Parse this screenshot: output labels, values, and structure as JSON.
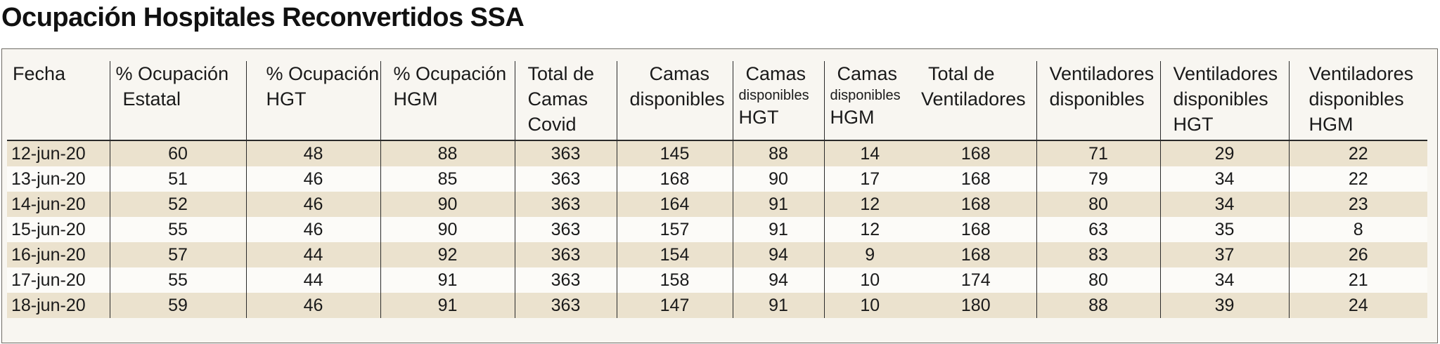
{
  "title": "Ocupación Hospitales Reconvertidos SSA",
  "table": {
    "headers": [
      [
        "Fecha"
      ],
      [
        "% Ocupación",
        "Estatal"
      ],
      [
        "% Ocupación",
        "HGT"
      ],
      [
        "% Ocupación",
        "HGM"
      ],
      [
        "Total de",
        "Camas",
        "Covid"
      ],
      [
        "Camas",
        "disponibles"
      ],
      [
        "Camas",
        "disponibles",
        "HGT"
      ],
      [
        "Camas",
        "disponibles",
        "HGM"
      ],
      [
        "Total de",
        "Ventiladores"
      ],
      [
        "Ventiladores",
        "disponibles"
      ],
      [
        "Ventiladores",
        "disponibles",
        "HGT"
      ],
      [
        "Ventiladores",
        "disponibles",
        "HGM"
      ]
    ],
    "rows": [
      [
        "12-jun-20",
        "60",
        "48",
        "88",
        "363",
        "145",
        "88",
        "14",
        "168",
        "71",
        "29",
        "22"
      ],
      [
        "13-jun-20",
        "51",
        "46",
        "85",
        "363",
        "168",
        "90",
        "17",
        "168",
        "79",
        "34",
        "22"
      ],
      [
        "14-jun-20",
        "52",
        "46",
        "90",
        "363",
        "164",
        "91",
        "12",
        "168",
        "80",
        "34",
        "23"
      ],
      [
        "15-jun-20",
        "55",
        "46",
        "90",
        "363",
        "157",
        "91",
        "12",
        "168",
        "63",
        "35",
        "8"
      ],
      [
        "16-jun-20",
        "57",
        "44",
        "92",
        "363",
        "154",
        "94",
        "9",
        "168",
        "83",
        "37",
        "26"
      ],
      [
        "17-jun-20",
        "55",
        "44",
        "91",
        "363",
        "158",
        "94",
        "10",
        "174",
        "80",
        "34",
        "21"
      ],
      [
        "18-jun-20",
        "59",
        "46",
        "91",
        "363",
        "147",
        "91",
        "10",
        "180",
        "88",
        "39",
        "24"
      ]
    ]
  },
  "colors": {
    "row_shaded": "#ebe2ce",
    "row_light": "#fcfbf8",
    "panel_bg": "#f8f6f1",
    "rule": "#2a2a2a"
  }
}
